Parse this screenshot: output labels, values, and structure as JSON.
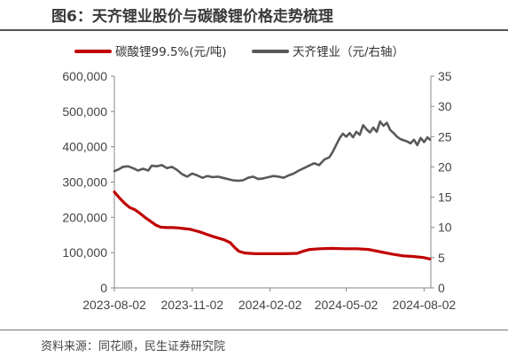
{
  "figure": {
    "title": "图6：天齐锂业股价与碳酸锂价格走势梳理",
    "source": "资料来源：同花顺，民生证券研究院"
  },
  "colors": {
    "series_lithium": "#c00000",
    "series_stock": "#595959",
    "axis": "#888888",
    "rule": "#555555"
  },
  "chart_data": {
    "type": "line",
    "title": "图6：天齐锂业股价与碳酸锂价格走势梳理",
    "x_axis": {
      "type": "date",
      "range": [
        "2023-08-02",
        "2024-08-10"
      ],
      "tick_labels": [
        "2023-08-02",
        "2023-11-02",
        "2024-02-02",
        "2024-05-02",
        "2024-08-02"
      ]
    },
    "y_left": {
      "range": [
        0,
        600000
      ],
      "ticks": [
        0,
        100000,
        200000,
        300000,
        400000,
        500000,
        600000
      ],
      "tick_labels": [
        "0",
        "100,000",
        "200,000",
        "300,000",
        "400,000",
        "500,000",
        "600,000"
      ]
    },
    "y_right": {
      "range": [
        0,
        35
      ],
      "ticks": [
        0,
        5,
        10,
        15,
        20,
        25,
        30,
        35
      ],
      "tick_labels": [
        "0",
        "5",
        "10",
        "15",
        "20",
        "25",
        "30",
        "35"
      ]
    },
    "legend_position": "top",
    "grid": false,
    "series": [
      {
        "name": "碳酸锂99.5%(元/吨)",
        "axis": "left",
        "color": "#c00000",
        "points": [
          [
            "2023-08-02",
            272000
          ],
          [
            "2023-08-08",
            255000
          ],
          [
            "2023-08-14",
            240000
          ],
          [
            "2023-08-20",
            228000
          ],
          [
            "2023-08-26",
            222000
          ],
          [
            "2023-09-01",
            212000
          ],
          [
            "2023-09-07",
            200000
          ],
          [
            "2023-09-13",
            190000
          ],
          [
            "2023-09-20",
            178000
          ],
          [
            "2023-09-26",
            172000
          ],
          [
            "2023-10-03",
            171000
          ],
          [
            "2023-10-10",
            171000
          ],
          [
            "2023-10-17",
            170000
          ],
          [
            "2023-10-24",
            168000
          ],
          [
            "2023-10-31",
            166000
          ],
          [
            "2023-11-06",
            162000
          ],
          [
            "2023-11-12",
            158000
          ],
          [
            "2023-11-19",
            152000
          ],
          [
            "2023-11-26",
            146000
          ],
          [
            "2023-12-03",
            141000
          ],
          [
            "2023-12-10",
            136000
          ],
          [
            "2023-12-17",
            128000
          ],
          [
            "2023-12-22",
            115000
          ],
          [
            "2023-12-27",
            104000
          ],
          [
            "2024-01-03",
            99000
          ],
          [
            "2024-01-15",
            97000
          ],
          [
            "2024-02-01",
            97000
          ],
          [
            "2024-02-20",
            97000
          ],
          [
            "2024-03-05",
            98000
          ],
          [
            "2024-03-12",
            104000
          ],
          [
            "2024-03-20",
            109000
          ],
          [
            "2024-04-01",
            111000
          ],
          [
            "2024-04-15",
            112000
          ],
          [
            "2024-05-01",
            111000
          ],
          [
            "2024-05-15",
            111000
          ],
          [
            "2024-05-28",
            109000
          ],
          [
            "2024-06-10",
            103000
          ],
          [
            "2024-06-25",
            96000
          ],
          [
            "2024-07-08",
            91000
          ],
          [
            "2024-07-20",
            89000
          ],
          [
            "2024-08-01",
            86000
          ],
          [
            "2024-08-09",
            82000
          ]
        ]
      },
      {
        "name": "天齐锂业（元/右轴）",
        "axis": "right",
        "color": "#595959",
        "points": [
          [
            "2023-08-02",
            19.3
          ],
          [
            "2023-08-07",
            19.6
          ],
          [
            "2023-08-12",
            20.0
          ],
          [
            "2023-08-18",
            20.1
          ],
          [
            "2023-08-24",
            19.8
          ],
          [
            "2023-08-30",
            19.4
          ],
          [
            "2023-09-05",
            19.7
          ],
          [
            "2023-09-11",
            19.4
          ],
          [
            "2023-09-15",
            20.2
          ],
          [
            "2023-09-21",
            20.1
          ],
          [
            "2023-09-27",
            20.3
          ],
          [
            "2023-10-03",
            19.8
          ],
          [
            "2023-10-09",
            20.0
          ],
          [
            "2023-10-15",
            19.5
          ],
          [
            "2023-10-21",
            18.8
          ],
          [
            "2023-10-27",
            18.4
          ],
          [
            "2023-11-02",
            18.9
          ],
          [
            "2023-11-08",
            18.6
          ],
          [
            "2023-11-14",
            18.2
          ],
          [
            "2023-11-20",
            18.5
          ],
          [
            "2023-11-26",
            18.3
          ],
          [
            "2023-12-02",
            18.4
          ],
          [
            "2023-12-08",
            18.2
          ],
          [
            "2023-12-14",
            18.0
          ],
          [
            "2023-12-20",
            17.8
          ],
          [
            "2023-12-26",
            17.7
          ],
          [
            "2024-01-01",
            17.8
          ],
          [
            "2024-01-07",
            18.2
          ],
          [
            "2024-01-13",
            18.4
          ],
          [
            "2024-01-19",
            18.0
          ],
          [
            "2024-01-25",
            18.1
          ],
          [
            "2024-01-31",
            18.3
          ],
          [
            "2024-02-06",
            18.5
          ],
          [
            "2024-02-12",
            18.4
          ],
          [
            "2024-02-18",
            18.2
          ],
          [
            "2024-02-24",
            18.6
          ],
          [
            "2024-03-01",
            18.9
          ],
          [
            "2024-03-07",
            19.4
          ],
          [
            "2024-03-13",
            19.8
          ],
          [
            "2024-03-19",
            20.2
          ],
          [
            "2024-03-25",
            20.6
          ],
          [
            "2024-03-31",
            20.3
          ],
          [
            "2024-04-06",
            21.2
          ],
          [
            "2024-04-12",
            21.6
          ],
          [
            "2024-04-16",
            22.5
          ],
          [
            "2024-04-20",
            23.6
          ],
          [
            "2024-04-24",
            24.7
          ],
          [
            "2024-04-28",
            25.5
          ],
          [
            "2024-05-02",
            25.0
          ],
          [
            "2024-05-06",
            25.6
          ],
          [
            "2024-05-10",
            24.9
          ],
          [
            "2024-05-14",
            25.8
          ],
          [
            "2024-05-18",
            25.3
          ],
          [
            "2024-05-22",
            26.9
          ],
          [
            "2024-05-26",
            26.2
          ],
          [
            "2024-05-30",
            25.7
          ],
          [
            "2024-06-03",
            26.5
          ],
          [
            "2024-06-07",
            25.8
          ],
          [
            "2024-06-11",
            27.5
          ],
          [
            "2024-06-15",
            26.8
          ],
          [
            "2024-06-19",
            27.3
          ],
          [
            "2024-06-23",
            26.1
          ],
          [
            "2024-06-27",
            25.6
          ],
          [
            "2024-07-01",
            25.0
          ],
          [
            "2024-07-05",
            24.6
          ],
          [
            "2024-07-09",
            24.4
          ],
          [
            "2024-07-13",
            24.2
          ],
          [
            "2024-07-17",
            23.9
          ],
          [
            "2024-07-21",
            24.5
          ],
          [
            "2024-07-25",
            23.6
          ],
          [
            "2024-07-29",
            24.8
          ],
          [
            "2024-08-02",
            24.1
          ],
          [
            "2024-08-06",
            24.9
          ],
          [
            "2024-08-09",
            24.5
          ]
        ]
      }
    ]
  }
}
